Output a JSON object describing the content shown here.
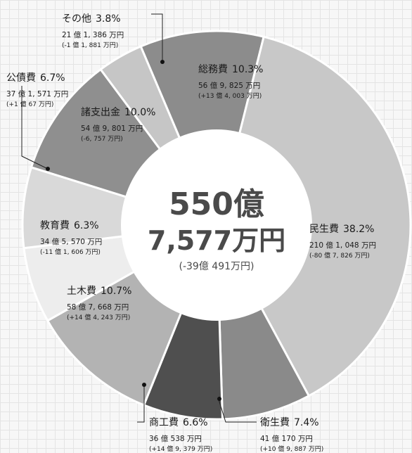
{
  "chart_data": {
    "type": "donut",
    "center": {
      "line1": "550億",
      "line2": "7,577万円",
      "line3": "(-39億 491万円)"
    },
    "slices": [
      {
        "name": "総務費",
        "pct": 10.3,
        "pct_label": "10.3%",
        "amount": "56 億 9, 825 万円",
        "diff": "(+13 億 4, 003 万円)",
        "color": "#8c8c8c"
      },
      {
        "name": "民生費",
        "pct": 38.2,
        "pct_label": "38.2%",
        "amount": "210 億 1, 048 万円",
        "diff": "(-80 億 7, 826 万円)",
        "color": "#c8c8c8"
      },
      {
        "name": "衛生費",
        "pct": 7.4,
        "pct_label": "7.4%",
        "amount": "41 億 170 万円",
        "diff": "(+10 億 9, 887 万円)",
        "color": "#8a8a8a"
      },
      {
        "name": "商工費",
        "pct": 6.6,
        "pct_label": "6.6%",
        "amount": "36 億 538 万円",
        "diff": "(+14 億 9, 379 万円)",
        "color": "#4f4f4f"
      },
      {
        "name": "土木費",
        "pct": 10.7,
        "pct_label": "10.7%",
        "amount": "58 億 7, 668 万円",
        "diff": "(+14 億 4, 243 万円)",
        "color": "#b3b3b3"
      },
      {
        "name": "教育費",
        "pct": 6.3,
        "pct_label": "6.3%",
        "amount": "34 億 5, 570 万円",
        "diff": "(-11 億 1, 606 万円)",
        "color": "#ededed"
      },
      {
        "name": "公債費",
        "pct": 6.7,
        "pct_label": "6.7%",
        "amount": "37 億 1, 571 万円",
        "diff": "(+1 億 67 万円)",
        "color": "#d9d9d9"
      },
      {
        "name": "諸支出金",
        "pct": 10.0,
        "pct_label": "10.0%",
        "amount": "54 億 9, 801 万円",
        "diff": "(-6, 757 万円)",
        "color": "#8f8f8f"
      },
      {
        "name": "その他",
        "pct": 3.8,
        "pct_label": "3.8%",
        "amount": "21 億 1, 386 万円",
        "diff": "(-1 億 1, 881 万円)",
        "color": "#c6c6c6"
      }
    ]
  }
}
